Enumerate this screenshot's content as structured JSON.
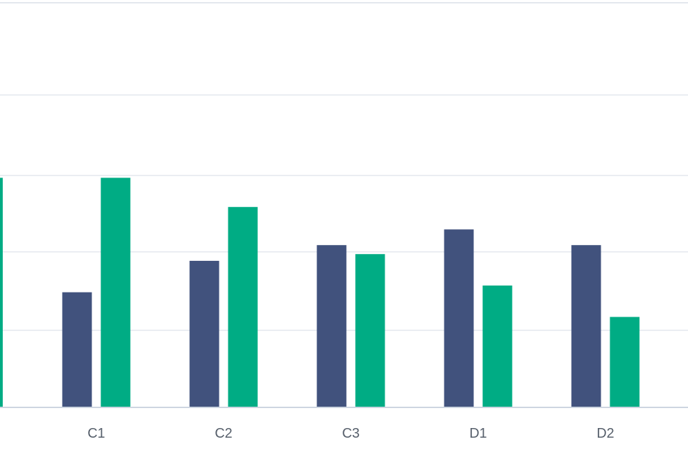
{
  "chart_data": {
    "type": "bar",
    "categories": [
      "C1",
      "C2",
      "C3",
      "D1",
      "D2"
    ],
    "series": [
      {
        "values": [
          2.55,
          3.25,
          3.6,
          3.95,
          3.6
        ],
        "color": "#41527d"
      },
      {
        "values": [
          5.1,
          4.45,
          3.4,
          2.7,
          2.0
        ],
        "color": "#00ac84"
      }
    ],
    "partial_left_bar": {
      "value": 5.1,
      "color": "#00ac84"
    },
    "ylim": [
      0,
      9
    ],
    "grid": true,
    "title": "",
    "xlabel": "",
    "ylabel": ""
  }
}
